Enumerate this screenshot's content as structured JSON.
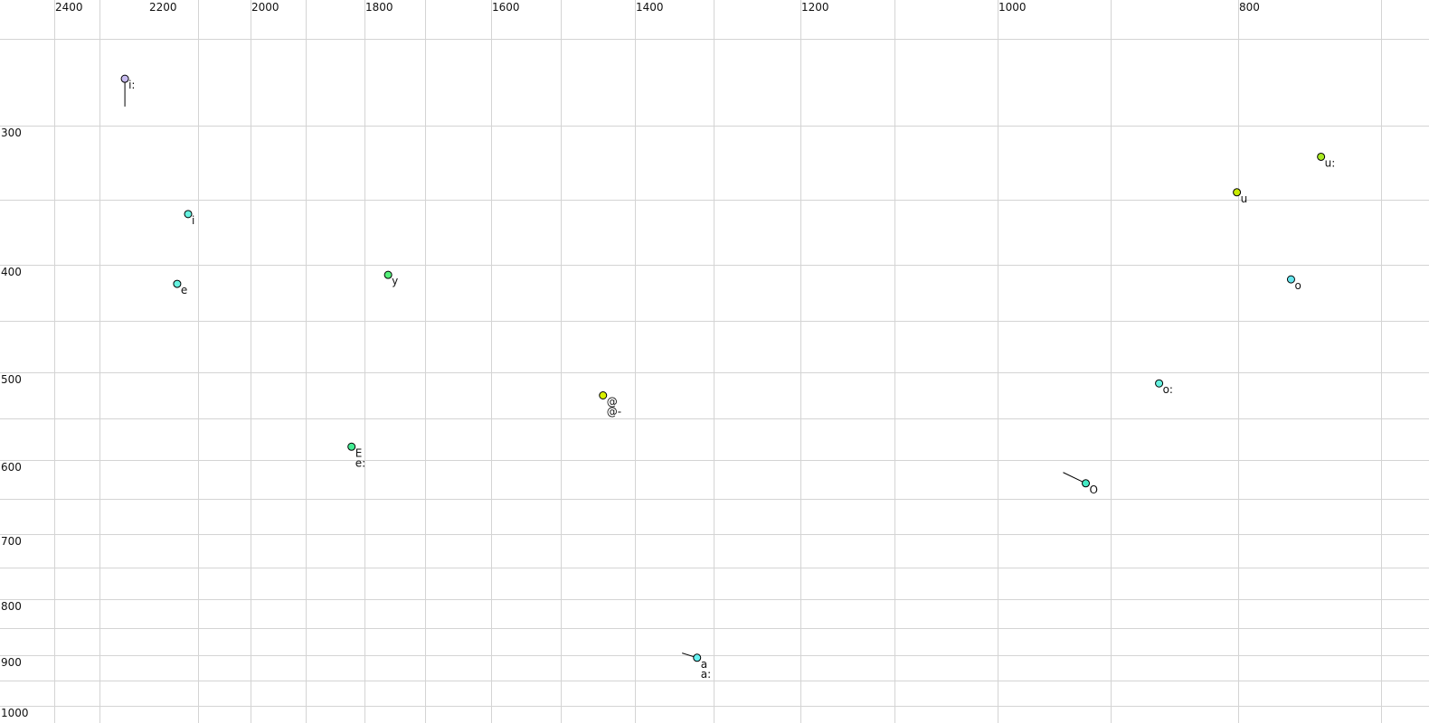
{
  "chart_data": {
    "type": "scatter",
    "title": "",
    "xlabel": "",
    "ylabel": "",
    "x_axis": {
      "reversed": true,
      "scale": "nonlinear",
      "range": [
        2450,
        650
      ],
      "tick_labels": [
        "2400",
        "2200",
        "2000",
        "1800",
        "1600",
        "1400",
        "1200",
        "1000",
        "800"
      ],
      "gridlines": [
        2400,
        2300,
        2100,
        2000,
        1900,
        1800,
        1700,
        1600,
        1500,
        1400,
        1300,
        1200,
        1100,
        1000,
        900,
        800,
        700
      ]
    },
    "y_axis": {
      "reversed": true,
      "scale": "nonlinear",
      "range": [
        230,
        1010
      ],
      "tick_labels": [
        "300",
        "400",
        "500",
        "600",
        "700",
        "800",
        "900",
        "1000"
      ],
      "gridlines": [
        250,
        300,
        350,
        400,
        450,
        500,
        550,
        600,
        650,
        700,
        750,
        800,
        850,
        900,
        950,
        1000
      ]
    },
    "grid": true,
    "legend": "none",
    "points": [
      {
        "labels": [
          "i:"
        ],
        "F2": 2248,
        "F1": 273,
        "color": "#c8bcf0",
        "trail": {
          "F2": 2248,
          "F1": 289
        }
      },
      {
        "labels": [
          "i"
        ],
        "F2": 2120,
        "F1": 361,
        "color": "#66f2e0"
      },
      {
        "labels": [
          "e"
        ],
        "F2": 2142,
        "F1": 417,
        "color": "#66f2e0"
      },
      {
        "labels": [
          "y"
        ],
        "F2": 1761,
        "F1": 409,
        "color": "#55f07a"
      },
      {
        "labels": [
          "E",
          "e:"
        ],
        "F2": 1822,
        "F1": 584,
        "color": "#44ec94"
      },
      {
        "labels": [
          "@",
          "@-"
        ],
        "F2": 1443,
        "F1": 525,
        "color": "#d8f000"
      },
      {
        "labels": [
          "a",
          "a:"
        ],
        "F2": 1321,
        "F1": 905,
        "color": "#66f2f2",
        "trail": {
          "F2": 1340,
          "F1": 896
        }
      },
      {
        "labels": [
          "O"
        ],
        "F2": 922,
        "F1": 630,
        "color": "#44eac4",
        "trail": {
          "F2": 942,
          "F1": 616
        }
      },
      {
        "labels": [
          "o:"
        ],
        "F2": 862,
        "F1": 512,
        "color": "#66f2e0"
      },
      {
        "labels": [
          "u"
        ],
        "F2": 801,
        "F1": 345,
        "color": "#c8ea00"
      },
      {
        "labels": [
          "o"
        ],
        "F2": 763,
        "F1": 413,
        "color": "#66e6ee"
      },
      {
        "labels": [
          "u:"
        ],
        "F2": 742,
        "F1": 321,
        "color": "#a8ea22"
      }
    ]
  }
}
